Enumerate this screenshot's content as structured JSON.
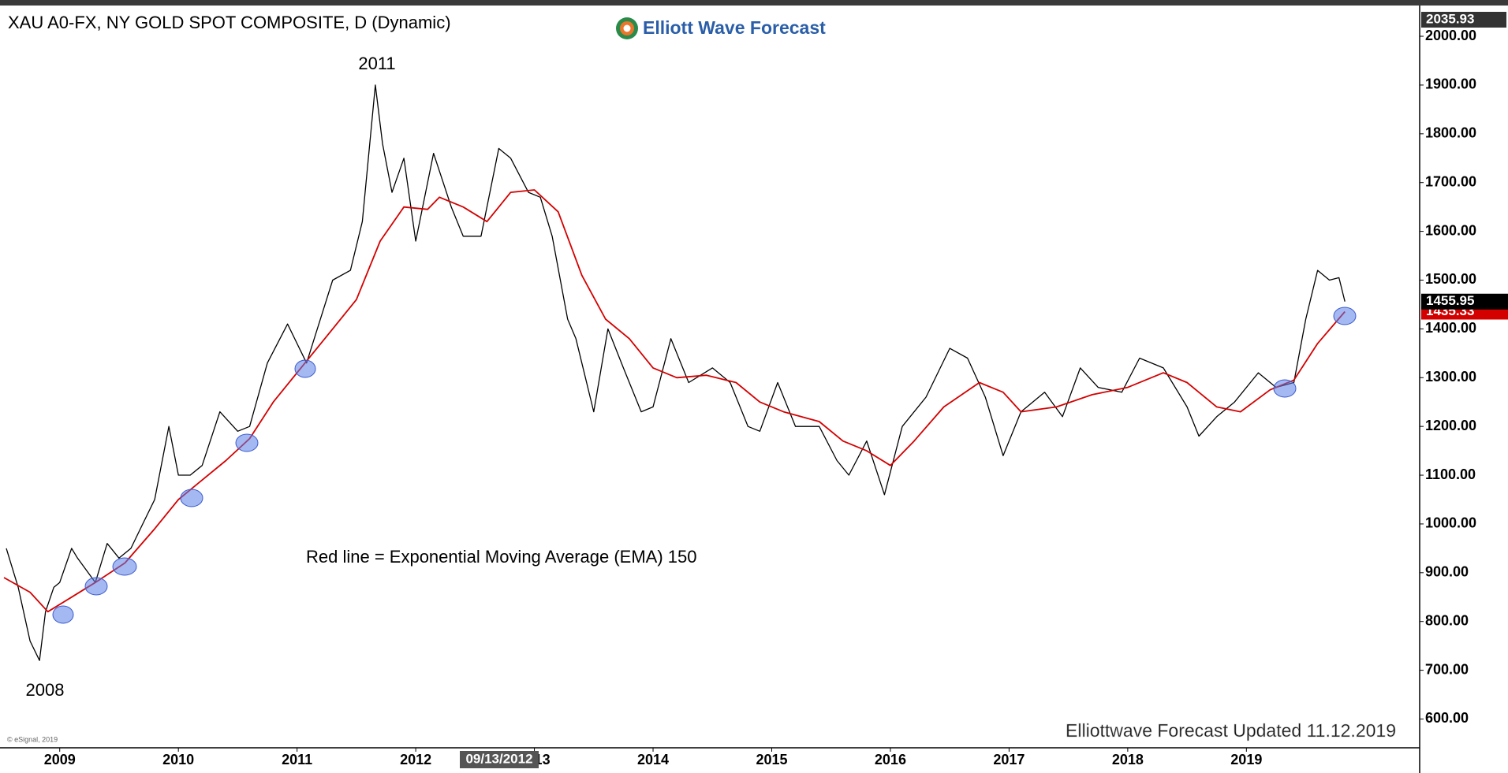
{
  "chart_data": {
    "type": "line",
    "title": "XAU A0-FX, NY GOLD SPOT COMPOSITE, D (Dynamic)",
    "logo": "Elliott Wave Forecast",
    "annotations": {
      "high": "2011",
      "low": "2008",
      "note": "Red line = Exponential Moving Average (EMA) 150",
      "updated": "Elliottwave Forecast Updated 11.12.2019",
      "copyright": "© eSignal, 2019",
      "cursor_date": "09/13/2012",
      "axis_top": "2035.93"
    },
    "xlim": [
      2008.53,
      2020.46
    ],
    "xticks": [
      2009,
      2010,
      2011,
      2012,
      2013,
      2014,
      2015,
      2016,
      2017,
      2018,
      2019
    ],
    "ylim": [
      541,
      2055
    ],
    "yticks": [
      {
        "value": 600,
        "label": "600.00"
      },
      {
        "value": 700,
        "label": "700.00"
      },
      {
        "value": 800,
        "label": "800.00"
      },
      {
        "value": 900,
        "label": "900.00"
      },
      {
        "value": 1000,
        "label": "1000.00"
      },
      {
        "value": 1100,
        "label": "1100.00"
      },
      {
        "value": 1200,
        "label": "1200.00"
      },
      {
        "value": 1300,
        "label": "1300.00"
      },
      {
        "value": 1400,
        "label": "1400.00"
      },
      {
        "value": 1500,
        "label": "1500.00"
      },
      {
        "value": 1600,
        "label": "1600.00"
      },
      {
        "value": 1700,
        "label": "1700.00"
      },
      {
        "value": 1800,
        "label": "1800.00"
      },
      {
        "value": 1900,
        "label": "1900.00"
      },
      {
        "value": 2000,
        "label": "2000.00"
      }
    ],
    "grid": false,
    "series": [
      {
        "name": "Gold",
        "color": "#000000",
        "x": [
          2008.55,
          2008.65,
          2008.75,
          2008.83,
          2008.88,
          2008.95,
          2009.0,
          2009.1,
          2009.15,
          2009.3,
          2009.4,
          2009.5,
          2009.6,
          2009.7,
          2009.8,
          2009.92,
          2010.0,
          2010.1,
          2010.2,
          2010.35,
          2010.5,
          2010.6,
          2010.75,
          2010.92,
          2011.0,
          2011.08,
          2011.3,
          2011.45,
          2011.55,
          2011.66,
          2011.72,
          2011.8,
          2011.9,
          2012.0,
          2012.15,
          2012.3,
          2012.4,
          2012.55,
          2012.7,
          2012.8,
          2012.95,
          2013.05,
          2013.15,
          2013.28,
          2013.35,
          2013.5,
          2013.62,
          2013.75,
          2013.9,
          2014.0,
          2014.15,
          2014.3,
          2014.5,
          2014.65,
          2014.8,
          2014.9,
          2015.05,
          2015.2,
          2015.4,
          2015.55,
          2015.65,
          2015.8,
          2015.95,
          2016.1,
          2016.3,
          2016.5,
          2016.65,
          2016.8,
          2016.95,
          2017.1,
          2017.3,
          2017.45,
          2017.6,
          2017.75,
          2017.95,
          2018.1,
          2018.3,
          2018.5,
          2018.6,
          2018.75,
          2018.9,
          2019.1,
          2019.25,
          2019.4,
          2019.5,
          2019.6,
          2019.7,
          2019.78,
          2019.83
        ],
        "values": [
          950,
          870,
          760,
          720,
          820,
          870,
          880,
          950,
          930,
          880,
          960,
          930,
          950,
          1000,
          1050,
          1200,
          1100,
          1100,
          1120,
          1230,
          1190,
          1200,
          1330,
          1410,
          1370,
          1330,
          1500,
          1520,
          1620,
          1900,
          1780,
          1680,
          1750,
          1580,
          1760,
          1650,
          1590,
          1590,
          1770,
          1750,
          1680,
          1670,
          1590,
          1420,
          1380,
          1230,
          1400,
          1320,
          1230,
          1240,
          1380,
          1290,
          1320,
          1290,
          1200,
          1190,
          1290,
          1200,
          1200,
          1130,
          1100,
          1170,
          1060,
          1200,
          1260,
          1360,
          1340,
          1260,
          1140,
          1230,
          1270,
          1220,
          1320,
          1280,
          1270,
          1340,
          1320,
          1240,
          1180,
          1220,
          1250,
          1310,
          1280,
          1290,
          1420,
          1520,
          1500,
          1505,
          1455.95
        ]
      },
      {
        "name": "EMA 150",
        "color": "#d40000",
        "x": [
          2008.53,
          2008.75,
          2008.9,
          2009.1,
          2009.3,
          2009.55,
          2009.8,
          2010.0,
          2010.2,
          2010.4,
          2010.6,
          2010.8,
          2011.0,
          2011.3,
          2011.5,
          2011.7,
          2011.9,
          2012.1,
          2012.2,
          2012.4,
          2012.6,
          2012.8,
          2013.0,
          2013.2,
          2013.4,
          2013.6,
          2013.8,
          2014.0,
          2014.2,
          2014.45,
          2014.7,
          2014.9,
          2015.1,
          2015.4,
          2015.6,
          2015.8,
          2016.0,
          2016.2,
          2016.45,
          2016.75,
          2016.95,
          2017.1,
          2017.4,
          2017.7,
          2018.0,
          2018.3,
          2018.5,
          2018.75,
          2018.95,
          2019.2,
          2019.4,
          2019.6,
          2019.83
        ],
        "values": [
          890,
          860,
          820,
          850,
          880,
          920,
          990,
          1050,
          1090,
          1130,
          1175,
          1250,
          1310,
          1400,
          1460,
          1580,
          1650,
          1645,
          1670,
          1650,
          1620,
          1680,
          1685,
          1640,
          1510,
          1420,
          1380,
          1320,
          1300,
          1305,
          1290,
          1250,
          1230,
          1210,
          1170,
          1150,
          1120,
          1170,
          1240,
          1290,
          1270,
          1230,
          1240,
          1265,
          1280,
          1310,
          1290,
          1240,
          1230,
          1275,
          1295,
          1370,
          1435.33
        ]
      }
    ]
  }
}
